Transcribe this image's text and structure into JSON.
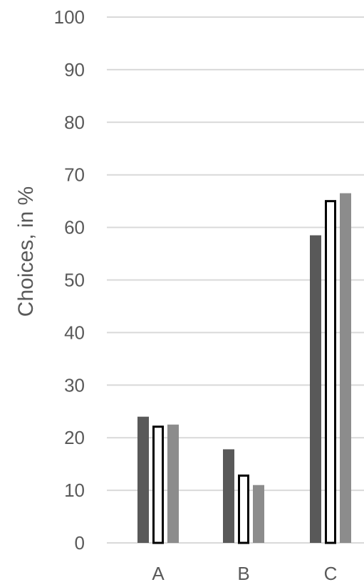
{
  "chart_data": {
    "type": "bar",
    "title": "",
    "xlabel": "",
    "ylabel": "Choices, in %",
    "ylim": [
      0,
      100
    ],
    "yticks": [
      0,
      10,
      20,
      30,
      40,
      50,
      60,
      70,
      80,
      90,
      100
    ],
    "grid": true,
    "legend": "none",
    "categories": [
      "A",
      "B",
      "C"
    ],
    "series": [
      {
        "values": [
          24.0,
          17.8,
          58.5
        ],
        "color": "#595959",
        "style": "filled"
      },
      {
        "values": [
          22.3,
          13.0,
          65.2
        ],
        "color": "#ffffff",
        "stroke": "#000000",
        "style": "outlined"
      },
      {
        "values": [
          22.5,
          11.0,
          66.5
        ],
        "color": "#8c8c8c",
        "style": "filled"
      }
    ]
  },
  "colors": {
    "gridline": "#d9d9d9",
    "text": "#595959"
  }
}
